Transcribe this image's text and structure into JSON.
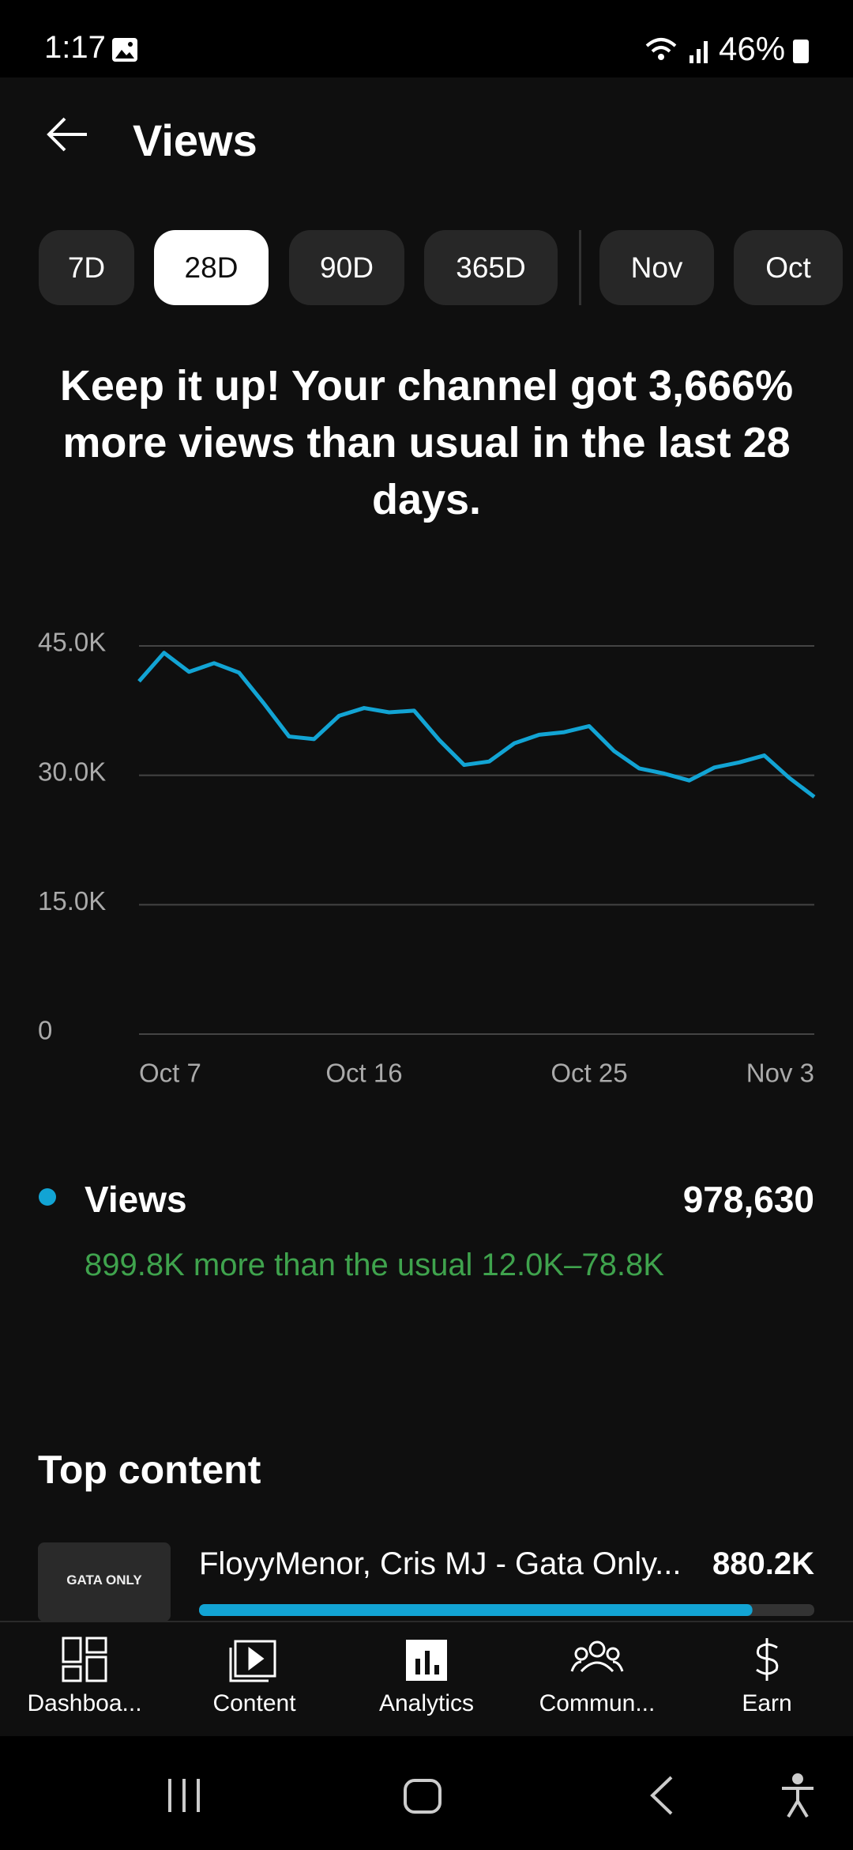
{
  "status_bar": {
    "time": "1:17",
    "battery": "46%"
  },
  "header": {
    "title": "Views"
  },
  "tabs": [
    {
      "label": "7D",
      "selected": false
    },
    {
      "label": "28D",
      "selected": true
    },
    {
      "label": "90D",
      "selected": false
    },
    {
      "label": "365D",
      "selected": false
    },
    {
      "label": "Nov",
      "selected": false
    },
    {
      "label": "Oct",
      "selected": false
    }
  ],
  "headline": "Keep it up! Your channel got 3,666% more views than usual in the last 28 days.",
  "chart_data": {
    "type": "line",
    "categories": [
      "Oct 7",
      null,
      null,
      null,
      null,
      null,
      null,
      null,
      null,
      "Oct 16",
      null,
      null,
      null,
      null,
      null,
      null,
      null,
      null,
      "Oct 25",
      null,
      null,
      null,
      null,
      null,
      null,
      null,
      null,
      "Nov 3"
    ],
    "series": [
      {
        "name": "Views",
        "color": "#12a4d4",
        "values": [
          40900,
          44200,
          42000,
          43000,
          41900,
          38300,
          34500,
          34200,
          36900,
          37800,
          37300,
          37500,
          34100,
          31200,
          31600,
          33700,
          34700,
          35000,
          35700,
          32800,
          30800,
          30200,
          29400,
          30900,
          31500,
          32300,
          29700,
          27500
        ]
      }
    ],
    "ylim": [
      0,
      45000
    ],
    "yticks": [
      {
        "value": 0,
        "label": "0"
      },
      {
        "value": 15000,
        "label": "15.0K"
      },
      {
        "value": 30000,
        "label": "30.0K"
      },
      {
        "value": 45000,
        "label": "45.0K"
      }
    ],
    "grid": true
  },
  "summary": {
    "name": "Views",
    "total": 978630,
    "total_label": "978,630",
    "note": "899.8K more than the usual 12.0K–78.8K"
  },
  "top_content": {
    "title": "Top content",
    "items": [
      {
        "thumbnail_text": "GATA ONLY",
        "title": "FloyyMenor, Cris MJ - Gata Only...",
        "value": 880200,
        "value_label": "880.2K"
      }
    ]
  },
  "nav": [
    {
      "label": "Dashboa..."
    },
    {
      "label": "Content"
    },
    {
      "label": "Analytics",
      "selected": true
    },
    {
      "label": "Commun..."
    },
    {
      "label": "Earn"
    }
  ]
}
